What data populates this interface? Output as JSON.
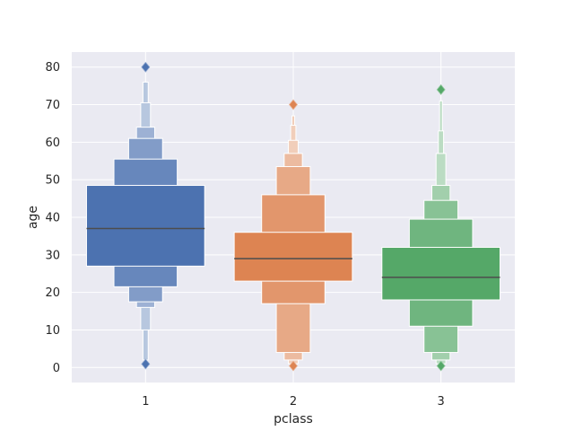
{
  "chart_data": {
    "type": "boxen",
    "title": "",
    "xlabel": "pclass",
    "ylabel": "age",
    "categories": [
      "1",
      "2",
      "3"
    ],
    "ylim": [
      -4,
      84
    ],
    "yticks": [
      0,
      10,
      20,
      30,
      40,
      50,
      60,
      70,
      80
    ],
    "grid": true,
    "background": "#eaeaf2",
    "grid_color": "#ffffff",
    "median_color": "#4d4d4d",
    "series": [
      {
        "category": "1",
        "color": "#4c72b0",
        "median": 37,
        "boxes": [
          {
            "low": 27,
            "high": 48.5
          },
          {
            "low": 21.5,
            "high": 55.5
          },
          {
            "low": 17.5,
            "high": 61
          },
          {
            "low": 16,
            "high": 64
          },
          {
            "low": 10,
            "high": 70.5
          },
          {
            "low": 2,
            "high": 76
          }
        ],
        "outliers": [
          0.92,
          80
        ]
      },
      {
        "category": "2",
        "color": "#dd8452",
        "median": 29,
        "boxes": [
          {
            "low": 23,
            "high": 36
          },
          {
            "low": 17,
            "high": 46
          },
          {
            "low": 4,
            "high": 53.5
          },
          {
            "low": 2,
            "high": 57
          },
          {
            "low": 1,
            "high": 60.5
          },
          {
            "low": 0.8,
            "high": 64.5
          },
          {
            "low": 0.7,
            "high": 67
          }
        ],
        "outliers": [
          0.42,
          70
        ]
      },
      {
        "category": "3",
        "color": "#55a868",
        "median": 24,
        "boxes": [
          {
            "low": 18,
            "high": 32
          },
          {
            "low": 11,
            "high": 39.5
          },
          {
            "low": 4,
            "high": 44.5
          },
          {
            "low": 2,
            "high": 48.5
          },
          {
            "low": 1,
            "high": 57
          },
          {
            "low": 0.8,
            "high": 63
          },
          {
            "low": 0.7,
            "high": 71
          }
        ],
        "outliers": [
          0.42,
          74
        ]
      }
    ]
  }
}
